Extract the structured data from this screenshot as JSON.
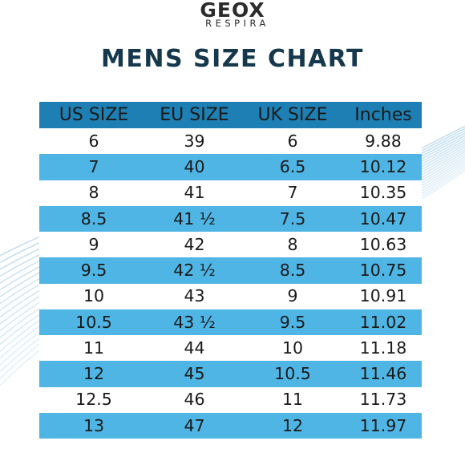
{
  "brand": {
    "name": "GEOX",
    "sub": "RESPIRA"
  },
  "title": "MENS SIZE CHART",
  "columns": [
    "US SIZE",
    "EU SIZE",
    "UK SIZE",
    "Inches"
  ],
  "rows": [
    [
      "6",
      "39",
      "6",
      "9.88"
    ],
    [
      "7",
      "40",
      "6.5",
      "10.12"
    ],
    [
      "8",
      "41",
      "7",
      "10.35"
    ],
    [
      "8.5",
      "41 ½",
      "7.5",
      "10.47"
    ],
    [
      "9",
      "42",
      "8",
      "10.63"
    ],
    [
      "9.5",
      "42 ½",
      "8.5",
      "10.75"
    ],
    [
      "10",
      "43",
      "9",
      "10.91"
    ],
    [
      "10.5",
      "43 ½",
      "9.5",
      "11.02"
    ],
    [
      "11",
      "44",
      "10",
      "11.18"
    ],
    [
      "12",
      "45",
      "10.5",
      "11.46"
    ],
    [
      "12.5",
      "46",
      "11",
      "11.73"
    ],
    [
      "13",
      "47",
      "12",
      "11.97"
    ]
  ],
  "colors": {
    "header_bg": "#1d7fb3",
    "stripe": "#4fb5e5",
    "title": "#15384d",
    "wave": "#b9d9ec"
  }
}
